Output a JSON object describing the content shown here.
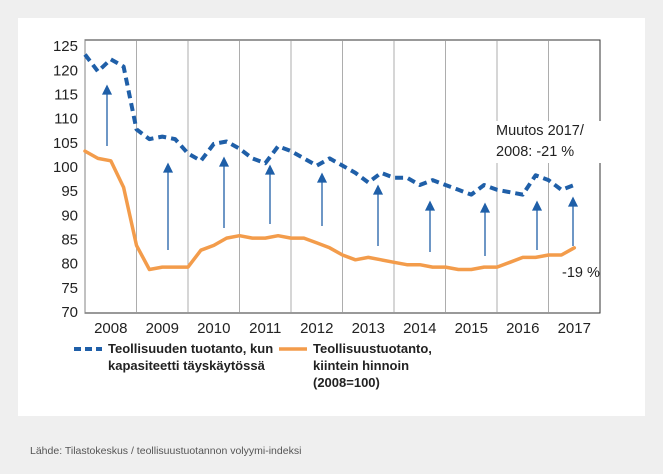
{
  "chart_data": {
    "type": "line",
    "x": [
      2008,
      2008.25,
      2008.5,
      2008.75,
      2009,
      2009.25,
      2009.5,
      2009.75,
      2010,
      2010.25,
      2010.5,
      2010.75,
      2011,
      2011.25,
      2011.5,
      2011.75,
      2012,
      2012.25,
      2012.5,
      2012.75,
      2013,
      2013.25,
      2013.5,
      2013.75,
      2014,
      2014.25,
      2014.5,
      2014.75,
      2015,
      2015.25,
      2015.5,
      2015.75,
      2016,
      2016.25,
      2016.5,
      2016.75,
      2017,
      2017.25,
      2017.5
    ],
    "series": [
      {
        "name": "Teollisuuden tuotanto, kun kapasiteetti täyskäytössä",
        "color": "#1f5fa8",
        "dashed": true,
        "values": [
          123.5,
          120,
          122.5,
          121,
          108,
          106,
          106.5,
          106,
          103,
          101.5,
          105,
          105.5,
          104,
          102,
          101,
          104.5,
          103.5,
          102,
          100.5,
          102,
          100.5,
          99,
          97,
          99,
          98,
          98,
          96.5,
          97.5,
          96.5,
          95.5,
          94.5,
          96.5,
          95.5,
          95,
          94.5,
          98.5,
          97.5,
          95.5,
          96.5
        ]
      },
      {
        "name": "Teollisuustuotanto, kiintein hinnoin (2008=100)",
        "color": "#f39c4b",
        "dashed": false,
        "values": [
          103.5,
          102,
          101.5,
          96,
          84,
          79,
          79.5,
          79.5,
          79.5,
          83,
          84,
          85.5,
          86,
          85.5,
          85.5,
          86,
          85.5,
          85.5,
          84.5,
          83.5,
          82,
          81,
          81.5,
          81,
          80.5,
          80,
          80,
          79.5,
          79.5,
          79,
          79,
          79.5,
          79.5,
          80.5,
          81.5,
          81.5,
          82,
          82,
          83.5
        ]
      }
    ],
    "xlim": [
      2008,
      2018
    ],
    "xticks": [
      2008,
      2009,
      2010,
      2011,
      2012,
      2013,
      2014,
      2015,
      2016,
      2017
    ],
    "ylim": [
      70,
      126.5
    ],
    "yticks": [
      70,
      75,
      80,
      85,
      90,
      95,
      100,
      105,
      110,
      115,
      120,
      125
    ],
    "annotations": [
      "Muutos 2017/ 2008: -21 %",
      "-19 %"
    ],
    "source": "Lähde: Tilastokeskus / teollisuustuotannon volyymi-indeksi"
  }
}
